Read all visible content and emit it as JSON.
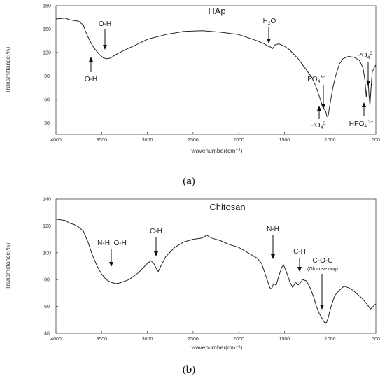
{
  "chart_data": [
    {
      "type": "line",
      "title": "HAp",
      "xlabel": "wavenumber(cm⁻¹)",
      "ylabel": "Transmittance(%)",
      "xlim": [
        4000,
        500
      ],
      "ylim": [
        15,
        180
      ],
      "x_ticks": [
        "4000",
        "3500",
        "3000",
        "2500",
        "2000",
        "1500",
        "1000",
        "500"
      ],
      "y_ticks": [
        "30",
        "60",
        "90",
        "120",
        "150",
        "180"
      ],
      "grid": false,
      "series": [
        {
          "points": [
            [
              4000,
              163
            ],
            [
              3900,
              164
            ],
            [
              3850,
              162
            ],
            [
              3800,
              161
            ],
            [
              3750,
              160
            ],
            [
              3700,
              155
            ],
            [
              3680,
              148
            ],
            [
              3650,
              140
            ],
            [
              3620,
              133
            ],
            [
              3590,
              127
            ],
            [
              3570,
              124
            ],
            [
              3530,
              118
            ],
            [
              3480,
              113
            ],
            [
              3440,
              112
            ],
            [
              3400,
              113
            ],
            [
              3350,
              117
            ],
            [
              3250,
              123
            ],
            [
              3100,
              131
            ],
            [
              3000,
              137
            ],
            [
              2800,
              143
            ],
            [
              2600,
              147
            ],
            [
              2400,
              148
            ],
            [
              2200,
              146
            ],
            [
              2000,
              143
            ],
            [
              1900,
              139
            ],
            [
              1800,
              135
            ],
            [
              1720,
              131
            ],
            [
              1680,
              128
            ],
            [
              1650,
              127
            ],
            [
              1630,
              125
            ],
            [
              1600,
              130
            ],
            [
              1560,
              131
            ],
            [
              1500,
              128
            ],
            [
              1450,
              124
            ],
            [
              1400,
              118
            ],
            [
              1350,
              112
            ],
            [
              1300,
              104
            ],
            [
              1250,
              96
            ],
            [
              1200,
              88
            ],
            [
              1150,
              75
            ],
            [
              1100,
              57
            ],
            [
              1070,
              48
            ],
            [
              1050,
              45
            ],
            [
              1035,
              38
            ],
            [
              1020,
              40
            ],
            [
              1000,
              55
            ],
            [
              970,
              75
            ],
            [
              940,
              90
            ],
            [
              900,
              105
            ],
            [
              860,
              112
            ],
            [
              800,
              115
            ],
            [
              740,
              114
            ],
            [
              680,
              110
            ],
            [
              640,
              100
            ],
            [
              620,
              85
            ],
            [
              605,
              63
            ],
            [
              595,
              75
            ],
            [
              585,
              85
            ],
            [
              575,
              65
            ],
            [
              565,
              52
            ],
            [
              555,
              70
            ],
            [
              540,
              95
            ],
            [
              520,
              100
            ],
            [
              500,
              104
            ]
          ]
        }
      ],
      "annotations": [
        {
          "label": "O-H",
          "wavenumber": 3440,
          "side": "above"
        },
        {
          "label": "O-H",
          "wavenumber": 3570,
          "side": "below"
        },
        {
          "label": "H2O",
          "wavenumber": 1640,
          "side": "above"
        },
        {
          "label": "PO43−",
          "wavenumber": 1040,
          "side": "above"
        },
        {
          "label": "PO43−",
          "wavenumber": 1090,
          "side": "below"
        },
        {
          "label": "PO43−",
          "wavenumber": 565,
          "side": "above"
        },
        {
          "label": "HPO42−",
          "wavenumber": 605,
          "side": "below"
        }
      ],
      "caption": "(a)"
    },
    {
      "type": "line",
      "title": "Chitosan",
      "xlabel": "wavenumber(cm⁻¹)",
      "ylabel": "Transmittance(%)",
      "xlim": [
        4000,
        500
      ],
      "ylim": [
        40,
        140
      ],
      "x_ticks": [
        "4000",
        "3500",
        "3000",
        "2500",
        "2000",
        "1500",
        "1000",
        "500"
      ],
      "y_ticks": [
        "40",
        "60",
        "80",
        "100",
        "120",
        "140"
      ],
      "grid": false,
      "series": [
        {
          "points": [
            [
              4000,
              125
            ],
            [
              3900,
              124
            ],
            [
              3850,
              122
            ],
            [
              3800,
              121
            ],
            [
              3750,
              119
            ],
            [
              3700,
              116
            ],
            [
              3650,
              108
            ],
            [
              3600,
              98
            ],
            [
              3550,
              90
            ],
            [
              3500,
              84
            ],
            [
              3450,
              80
            ],
            [
              3400,
              78
            ],
            [
              3350,
              77
            ],
            [
              3300,
              77.5
            ],
            [
              3200,
              80
            ],
            [
              3100,
              85
            ],
            [
              3000,
              92
            ],
            [
              2960,
              94
            ],
            [
              2930,
              92
            ],
            [
              2900,
              88
            ],
            [
              2880,
              86
            ],
            [
              2860,
              89
            ],
            [
              2800,
              97
            ],
            [
              2700,
              104
            ],
            [
              2600,
              108
            ],
            [
              2500,
              110
            ],
            [
              2400,
              111
            ],
            [
              2350,
              113
            ],
            [
              2300,
              111
            ],
            [
              2200,
              109
            ],
            [
              2100,
              106
            ],
            [
              2000,
              104
            ],
            [
              1900,
              100
            ],
            [
              1800,
              96
            ],
            [
              1750,
              92
            ],
            [
              1700,
              82
            ],
            [
              1660,
              74
            ],
            [
              1640,
              73
            ],
            [
              1620,
              77
            ],
            [
              1590,
              76
            ],
            [
              1560,
              83
            ],
            [
              1530,
              89
            ],
            [
              1510,
              91
            ],
            [
              1480,
              86
            ],
            [
              1440,
              78
            ],
            [
              1410,
              74
            ],
            [
              1380,
              78
            ],
            [
              1350,
              76
            ],
            [
              1320,
              78
            ],
            [
              1300,
              80
            ],
            [
              1260,
              79
            ],
            [
              1220,
              74
            ],
            [
              1180,
              67
            ],
            [
              1150,
              60
            ],
            [
              1120,
              55
            ],
            [
              1080,
              50
            ],
            [
              1060,
              48
            ],
            [
              1040,
              48
            ],
            [
              1020,
              52
            ],
            [
              990,
              60
            ],
            [
              950,
              68
            ],
            [
              900,
              72
            ],
            [
              850,
              75
            ],
            [
              800,
              74
            ],
            [
              750,
              72
            ],
            [
              700,
              69
            ],
            [
              650,
              66
            ],
            [
              600,
              62
            ],
            [
              560,
              58
            ],
            [
              530,
              60
            ],
            [
              500,
              62
            ]
          ]
        }
      ],
      "annotations": [
        {
          "label": "N-H, O-H",
          "wavenumber": 3380
        },
        {
          "label": "C-H",
          "wavenumber": 2880
        },
        {
          "label": "N-H",
          "wavenumber": 1590
        },
        {
          "label": "C-H",
          "wavenumber": 1310
        },
        {
          "label": "C-O-C",
          "sublabel": "(Glucose ring)",
          "wavenumber": 1070
        }
      ],
      "caption": "(b)"
    }
  ]
}
